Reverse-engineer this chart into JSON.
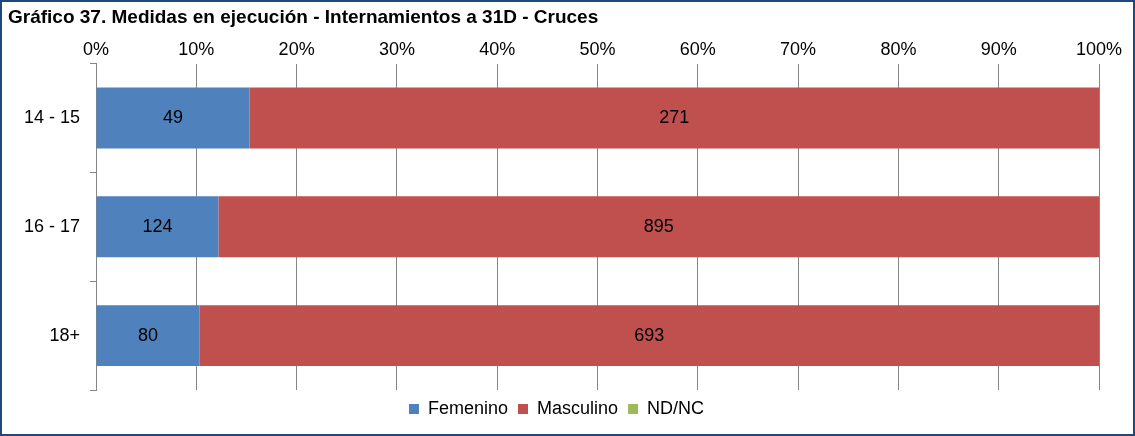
{
  "chart_data": {
    "type": "bar",
    "title": "Gráfico 37. Medidas en ejecución - Internamientos a 31D - Cruces",
    "orientation": "horizontal",
    "stacked": true,
    "categories": [
      "14 - 15",
      "16 - 17",
      "18+"
    ],
    "series": [
      {
        "name": "Femenino",
        "color": "#4f81bd",
        "values": [
          15.3,
          12.2,
          10.3
        ]
      },
      {
        "name": "Masculino",
        "color": "#c0504d",
        "values": [
          84.7,
          87.8,
          89.7
        ]
      },
      {
        "name": "ND/NC",
        "color": "#9bbb59",
        "values": [
          0,
          0,
          0
        ]
      }
    ],
    "annotations": [
      "49",
      "124",
      "80",
      "271",
      "895",
      "693"
    ],
    "xlim": [
      0,
      100
    ],
    "xticks": [
      {
        "value": 0,
        "label": "0%"
      },
      {
        "value": 10,
        "label": "10%"
      },
      {
        "value": 20,
        "label": "20%"
      },
      {
        "value": 30,
        "label": "30%"
      },
      {
        "value": 40,
        "label": "40%"
      },
      {
        "value": 50,
        "label": "50%"
      },
      {
        "value": 60,
        "label": "60%"
      },
      {
        "value": 70,
        "label": "70%"
      },
      {
        "value": 80,
        "label": "80%"
      },
      {
        "value": 90,
        "label": "90%"
      },
      {
        "value": 100,
        "label": "100%"
      }
    ],
    "grid": "x",
    "legend": "bottom"
  }
}
